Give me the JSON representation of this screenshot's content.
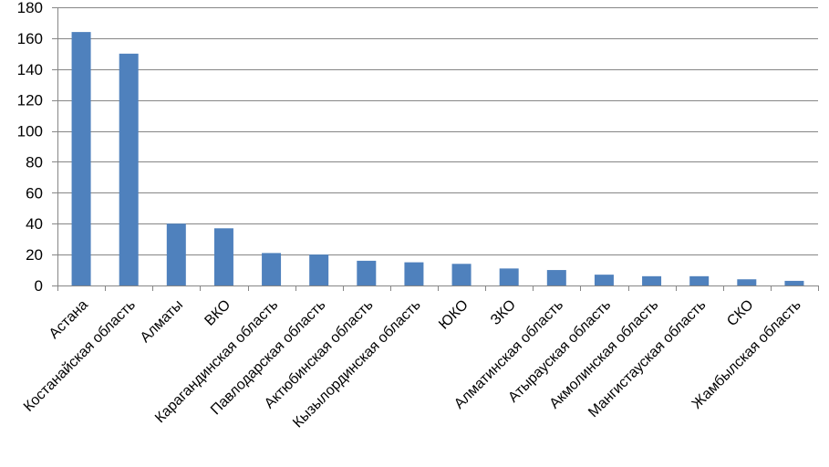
{
  "chart_data": {
    "type": "bar",
    "title": "",
    "xlabel": "",
    "ylabel": "",
    "categories": [
      "Астана",
      "Костанайская область",
      "Алматы",
      "ВКО",
      "Карагандинская область",
      "Павлодарская область",
      "Актюбинская область",
      "Кызылординская область",
      "ЮКО",
      "ЗКО",
      "Алматинская область",
      "Атырауская область",
      "Акмолинская область",
      "Мангистауская область",
      "СКО",
      "Жамбылская область"
    ],
    "values": [
      164,
      150,
      40,
      37,
      21,
      20,
      16,
      15,
      14,
      11,
      10,
      7,
      6,
      6,
      4,
      3
    ],
    "ylim": [
      0,
      180
    ],
    "yticks": [
      0,
      20,
      40,
      60,
      80,
      100,
      120,
      140,
      160,
      180
    ],
    "grid": true,
    "legend": "none",
    "colors": {
      "bar": "#4f81bd",
      "grid": "#868686"
    }
  }
}
